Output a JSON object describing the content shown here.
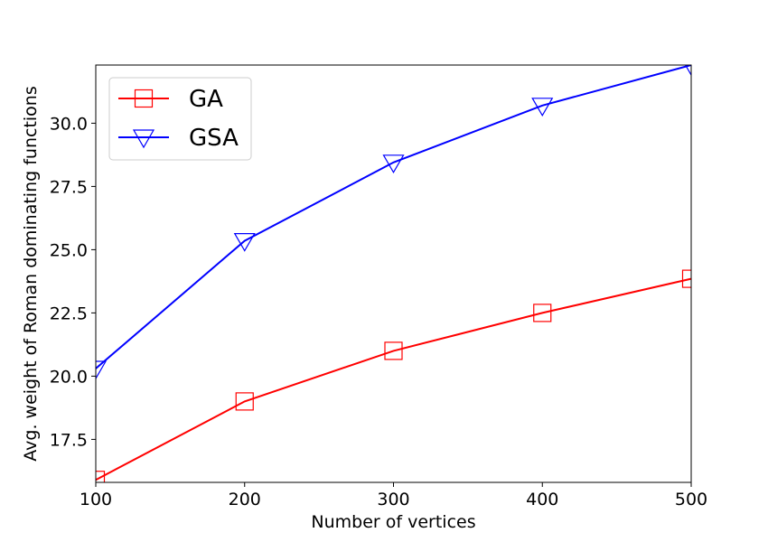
{
  "chart_data": {
    "type": "line",
    "x": [
      100,
      200,
      300,
      400,
      500
    ],
    "series": [
      {
        "name": "GA",
        "values": [
          15.9,
          19.0,
          21.0,
          22.5,
          23.85
        ],
        "color": "#ff0000",
        "marker": "square"
      },
      {
        "name": "GSA",
        "values": [
          20.3,
          25.35,
          28.45,
          30.7,
          32.3
        ],
        "color": "#0000ff",
        "marker": "triangle-down"
      }
    ],
    "xlabel": "Number of vertices",
    "ylabel": "Avg. weight of Roman dominating functions",
    "xlim": [
      100,
      500
    ],
    "ylim": [
      15.8,
      32.3
    ],
    "xticks": [
      "100",
      "200",
      "300",
      "400",
      "500"
    ],
    "yticks": [
      "17.5",
      "20.0",
      "22.5",
      "25.0",
      "27.5",
      "30.0"
    ],
    "ytick_values": [
      17.5,
      20.0,
      22.5,
      25.0,
      27.5,
      30.0
    ],
    "grid": false,
    "legend_position": "top-left"
  }
}
